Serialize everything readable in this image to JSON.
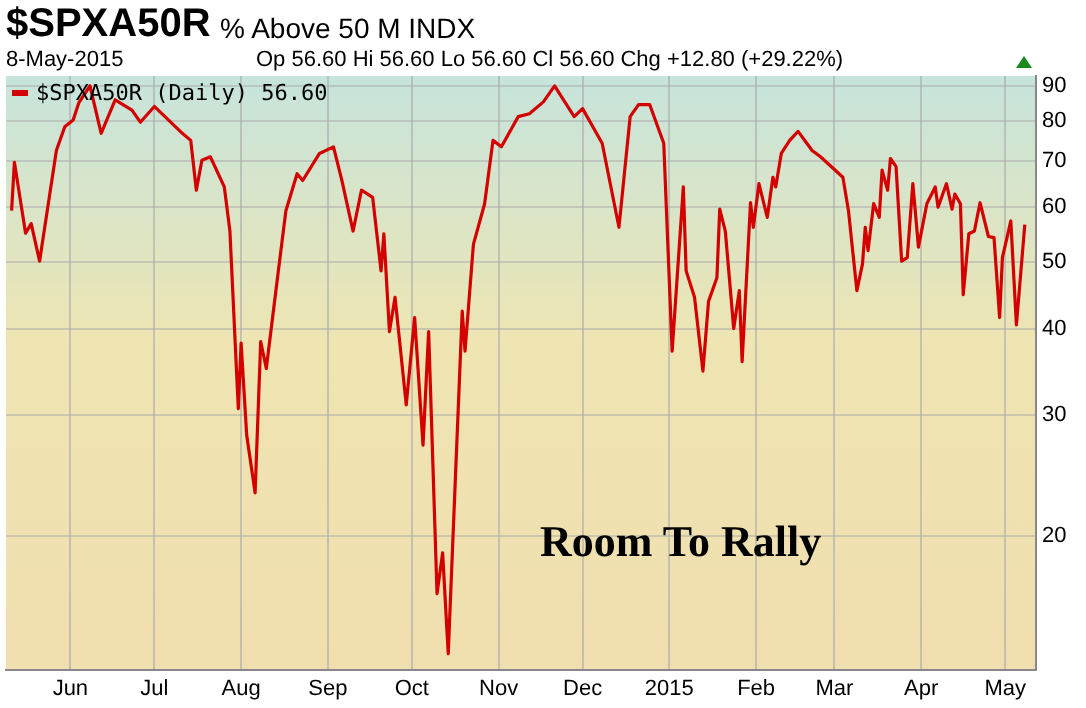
{
  "chart_data": {
    "type": "line",
    "title": "$SPXA50R",
    "subtitle": "% Above 50 M INDX",
    "annotations": [
      "8-May-2015",
      "Op 56.60  Hi 56.60  Lo 56.60  Cl 56.60  Chg +12.80 (+29.22%)",
      "Room To Rally"
    ],
    "log": "y",
    "grid": true,
    "legend": "top left",
    "marker": "none",
    "line_style": "solid",
    "xlim": [
      "2014-05-09",
      "2015-05-12"
    ],
    "xticks": [
      {
        "value": "2014-06-01",
        "label": "Jun"
      },
      {
        "value": "2014-07-01",
        "label": "Jul"
      },
      {
        "value": "2014-08-01",
        "label": "Aug"
      },
      {
        "value": "2014-09-01",
        "label": "Sep"
      },
      {
        "value": "2014-10-01",
        "label": "Oct"
      },
      {
        "value": "2014-11-01",
        "label": "Nov"
      },
      {
        "value": "2014-12-01",
        "label": "Dec"
      },
      {
        "value": "2015-01-01",
        "label": "2015"
      },
      {
        "value": "2015-02-01",
        "label": "Feb"
      },
      {
        "value": "2015-03-01",
        "label": "Mar"
      },
      {
        "value": "2015-04-01",
        "label": "Apr"
      },
      {
        "value": "2015-05-01",
        "label": "May"
      }
    ],
    "ylim": [
      12.8,
      93
    ],
    "yticks": [
      20,
      30,
      40,
      50,
      60,
      70,
      80,
      90
    ],
    "series": [
      {
        "name": "$SPXA50R (Daily) 56.60",
        "color": "#d40000",
        "x": [
          "2014-05-11",
          "2014-05-12",
          "2014-05-16",
          "2014-05-18",
          "2014-05-21",
          "2014-05-27",
          "2014-05-30",
          "2014-06-02",
          "2014-06-04",
          "2014-06-08",
          "2014-06-12",
          "2014-06-17",
          "2014-06-23",
          "2014-06-26",
          "2014-07-01",
          "2014-07-06",
          "2014-07-11",
          "2014-07-14",
          "2014-07-16",
          "2014-07-18",
          "2014-07-21",
          "2014-07-26",
          "2014-07-28",
          "2014-07-31",
          "2014-08-01",
          "2014-08-03",
          "2014-08-06",
          "2014-08-08",
          "2014-08-10",
          "2014-08-14",
          "2014-08-17",
          "2014-08-21",
          "2014-08-23",
          "2014-08-29",
          "2014-09-03",
          "2014-09-06",
          "2014-09-10",
          "2014-09-13",
          "2014-09-17",
          "2014-09-20",
          "2014-09-21",
          "2014-09-23",
          "2014-09-25",
          "2014-09-29",
          "2014-10-02",
          "2014-10-05",
          "2014-10-07",
          "2014-10-10",
          "2014-10-12",
          "2014-10-14",
          "2014-10-19",
          "2014-10-20",
          "2014-10-23",
          "2014-10-27",
          "2014-10-30",
          "2014-11-02",
          "2014-11-08",
          "2014-11-12",
          "2014-11-17",
          "2014-11-21",
          "2014-11-28",
          "2014-12-01",
          "2014-12-08",
          "2014-12-14",
          "2014-12-18",
          "2014-12-21",
          "2014-12-25",
          "2014-12-30",
          "2015-01-02",
          "2015-01-06",
          "2015-01-07",
          "2015-01-10",
          "2015-01-13",
          "2015-01-15",
          "2015-01-18",
          "2015-01-19",
          "2015-01-21",
          "2015-01-24",
          "2015-01-26",
          "2015-01-27",
          "2015-01-30",
          "2015-01-31",
          "2015-02-02",
          "2015-02-05",
          "2015-02-07",
          "2015-02-08",
          "2015-02-10",
          "2015-02-13",
          "2015-02-16",
          "2015-02-21",
          "2015-02-24",
          "2015-03-04",
          "2015-03-06",
          "2015-03-09",
          "2015-03-11",
          "2015-03-12",
          "2015-03-13",
          "2015-03-15",
          "2015-03-17",
          "2015-03-18",
          "2015-03-20",
          "2015-03-21",
          "2015-03-23",
          "2015-03-25",
          "2015-03-27",
          "2015-03-29",
          "2015-03-31",
          "2015-04-03",
          "2015-04-06",
          "2015-04-07",
          "2015-04-10",
          "2015-04-12",
          "2015-04-13",
          "2015-04-15",
          "2015-04-16",
          "2015-04-18",
          "2015-04-20",
          "2015-04-22",
          "2015-04-25",
          "2015-04-27",
          "2015-04-29",
          "2015-04-30",
          "2015-05-03",
          "2015-05-05",
          "2015-05-08"
        ],
        "values": [
          59.3,
          69.7,
          55,
          56.8,
          50.1,
          72.5,
          78.5,
          80.3,
          85,
          90,
          76.8,
          85.9,
          83,
          79.7,
          84,
          80.3,
          76.8,
          75,
          63.5,
          70.2,
          71,
          64.2,
          55.4,
          30.6,
          38.1,
          28,
          23.1,
          38.3,
          35,
          47.4,
          59.3,
          67.1,
          65.6,
          71.8,
          73.4,
          65.6,
          55.4,
          63.5,
          62,
          48.5,
          54.9,
          39.6,
          44.4,
          31,
          41.5,
          27.1,
          39.6,
          16.5,
          18.9,
          13.5,
          42.4,
          37.1,
          53,
          60.7,
          75,
          73.4,
          81.2,
          82,
          85.3,
          90,
          81.2,
          83.4,
          74.3,
          56.1,
          81.2,
          84.5,
          84.5,
          74.3,
          37.1,
          64.2,
          48.5,
          44.4,
          34.7,
          43.8,
          47.4,
          59.6,
          55.4,
          40,
          45.4,
          35.8,
          60.9,
          56.1,
          64.9,
          58,
          66.3,
          64.2,
          71.8,
          75,
          77.3,
          72.5,
          71,
          66.3,
          59.3,
          45.4,
          49.6,
          56.1,
          51.9,
          60.7,
          58,
          67.9,
          63.5,
          70.6,
          68.7,
          50.1,
          50.7,
          64.9,
          52.5,
          60.7,
          64.2,
          60,
          64.9,
          59.6,
          62.7,
          60.7,
          44.8,
          54.9,
          55.4,
          60.9,
          54.4,
          54.2,
          41.5,
          50.7,
          57.3,
          40.5,
          56.6
        ]
      }
    ]
  }
}
